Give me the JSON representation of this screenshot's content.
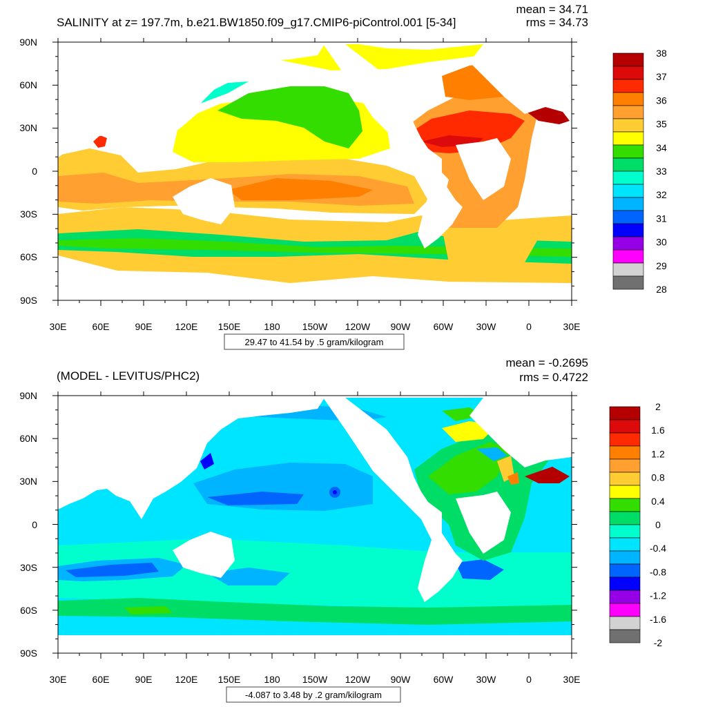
{
  "panel1": {
    "title": "SALINITY at z= 197.7m, b.e21.BW1850.f09_g17.CMIP6-piControl.001 [5-34]",
    "stats": [
      "mean = 34.71",
      "rms = 34.73"
    ],
    "range_label": "29.47 to 41.54 by .5 gram/kilogram",
    "colorbar": {
      "labels": [
        "38",
        "37",
        "36",
        "35",
        "34",
        "33",
        "32",
        "31",
        "30",
        "29",
        "28"
      ],
      "colors": [
        "#b40000",
        "#dc0a0a",
        "#ff2a00",
        "#ff8000",
        "#ffa030",
        "#ffcc33",
        "#ffff00",
        "#33dd00",
        "#00dd66",
        "#00ffcc",
        "#00e5ff",
        "#00b4ff",
        "#0064ff",
        "#0000ff",
        "#9600e6",
        "#ff00ff",
        "#d2d2d2",
        "#707070"
      ]
    }
  },
  "panel2": {
    "title": "(MODEL - LEVITUS/PHC2)",
    "stats": [
      "mean = -0.2695",
      "rms = 0.4722"
    ],
    "range_label": "-4.087 to 3.48 by .2 gram/kilogram",
    "colorbar": {
      "labels": [
        "2",
        "1.6",
        "1.2",
        "0.8",
        "0.4",
        "0",
        "-0.4",
        "-0.8",
        "-1.2",
        "-1.6",
        "-2"
      ],
      "colors": [
        "#b40000",
        "#dc0a0a",
        "#ff2a00",
        "#ff8000",
        "#ffa030",
        "#ffcc33",
        "#ffff00",
        "#33dd00",
        "#00dd66",
        "#00ffcc",
        "#00e5ff",
        "#00b4ff",
        "#0064ff",
        "#0000ff",
        "#9600e6",
        "#ff00ff",
        "#d2d2d2",
        "#707070"
      ]
    }
  },
  "axes": {
    "lon_labels": [
      "30E",
      "60E",
      "90E",
      "120E",
      "150E",
      "180",
      "150W",
      "120W",
      "90W",
      "60W",
      "30W",
      "0",
      "30E"
    ],
    "lat_labels": [
      "90N",
      "60N",
      "30N",
      "0",
      "30S",
      "60S",
      "90S"
    ]
  },
  "map_data": {
    "type": "filled-contour",
    "projection": "cylindrical-equidistant",
    "lon_range": [
      30,
      390
    ],
    "lat_range": [
      -90,
      90
    ],
    "panel1_field": "salinity at 197.7m",
    "panel2_field": "model minus Levitus/PHC2 salinity difference"
  }
}
